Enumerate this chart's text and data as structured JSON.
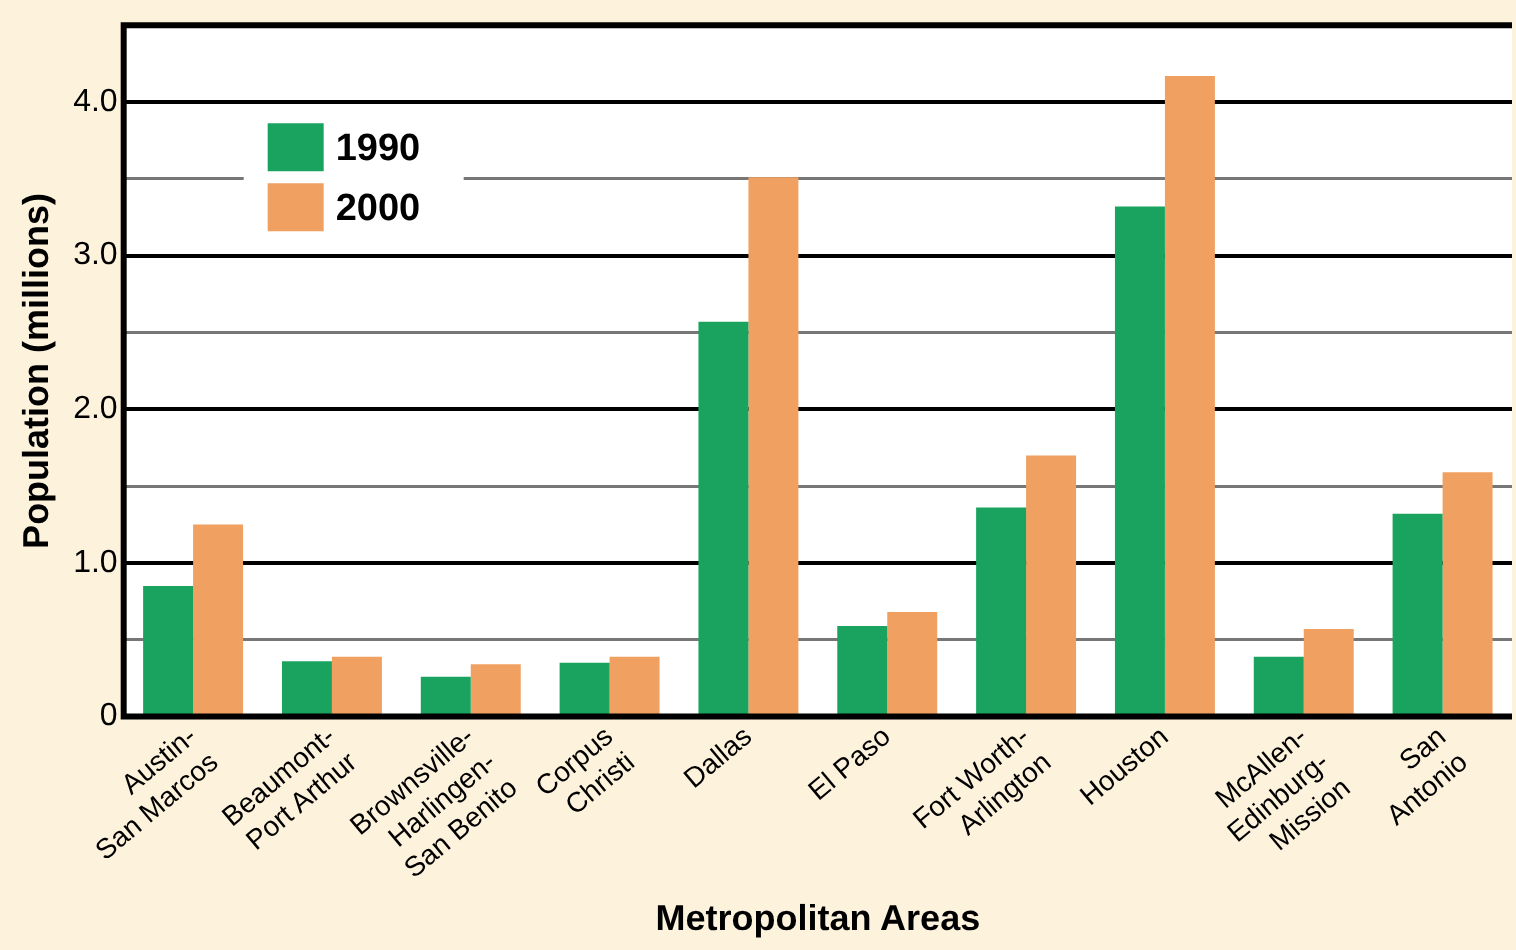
{
  "chart_data": {
    "type": "bar",
    "xlabel": "Metropolitan Areas",
    "ylabel": "Population (millions)",
    "categories": [
      "Austin-\nSan Marcos",
      "Beaumont-\nPort Arthur",
      "Brownsville-\nHarlingen-\nSan Benito",
      "Corpus\nChristi",
      "Dallas",
      "El Paso",
      "Fort Worth-\nArlington",
      "Houston",
      "McAllen-\nEdinburg-\nMission",
      "San\nAntonio"
    ],
    "series": [
      {
        "name": "1990",
        "color": "#1aa35f",
        "values": [
          0.85,
          0.36,
          0.26,
          0.35,
          2.57,
          0.59,
          1.36,
          3.32,
          0.39,
          1.32
        ]
      },
      {
        "name": "2000",
        "color": "#f0a060",
        "values": [
          1.25,
          0.39,
          0.34,
          0.39,
          3.51,
          0.68,
          1.7,
          4.17,
          0.57,
          1.59
        ]
      }
    ],
    "ylim": [
      0,
      4.5
    ],
    "yticks": [
      0,
      {
        "value": 0.5,
        "label": null
      },
      {
        "value": 1,
        "label": "1.0"
      },
      {
        "value": 1.5,
        "label": null
      },
      {
        "value": 2,
        "label": "2.0"
      },
      {
        "value": 2.5,
        "label": null
      },
      {
        "value": 3,
        "label": "3.0"
      },
      {
        "value": 3.5,
        "label": null
      },
      {
        "value": 4,
        "label": "4.0"
      }
    ],
    "grid": "y",
    "legend": "top left"
  }
}
